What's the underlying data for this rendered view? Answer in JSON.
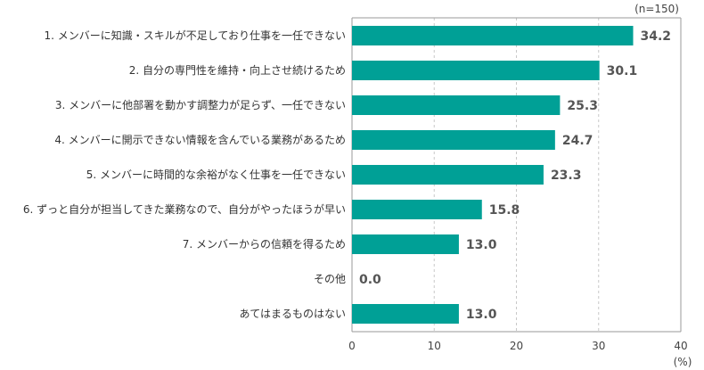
{
  "chart_data": {
    "type": "bar",
    "orientation": "horizontal",
    "sample_note": "(n=150)",
    "unit_label": "(%)",
    "categories": [
      "1. メンバーに知識・スキルが不足しており仕事を一任できない",
      "2. 自分の専門性を維持・向上させ続けるため",
      "3. メンバーに他部署を動かす調整力が足らず、一任できない",
      "4. メンバーに開示できない情報を含んでいる業務があるため",
      "5. メンバーに時間的な余裕がなく仕事を一任できない",
      "6. ずっと自分が担当してきた業務なので、自分がやったほうが早い",
      "7. メンバーからの信頼を得るため",
      "その他",
      "あてはまるものはない"
    ],
    "values": [
      34.2,
      30.1,
      25.3,
      24.7,
      23.3,
      15.8,
      13.0,
      0.0,
      13.0
    ],
    "value_labels": [
      "34.2",
      "30.1",
      "25.3",
      "24.7",
      "23.3",
      "15.8",
      "13.0",
      "0.0",
      "13.0"
    ],
    "xlim": [
      0,
      40
    ],
    "xticks": [
      0,
      10,
      20,
      30,
      40
    ],
    "grid": "vertical-dashed",
    "bar_color": "#00a096"
  }
}
